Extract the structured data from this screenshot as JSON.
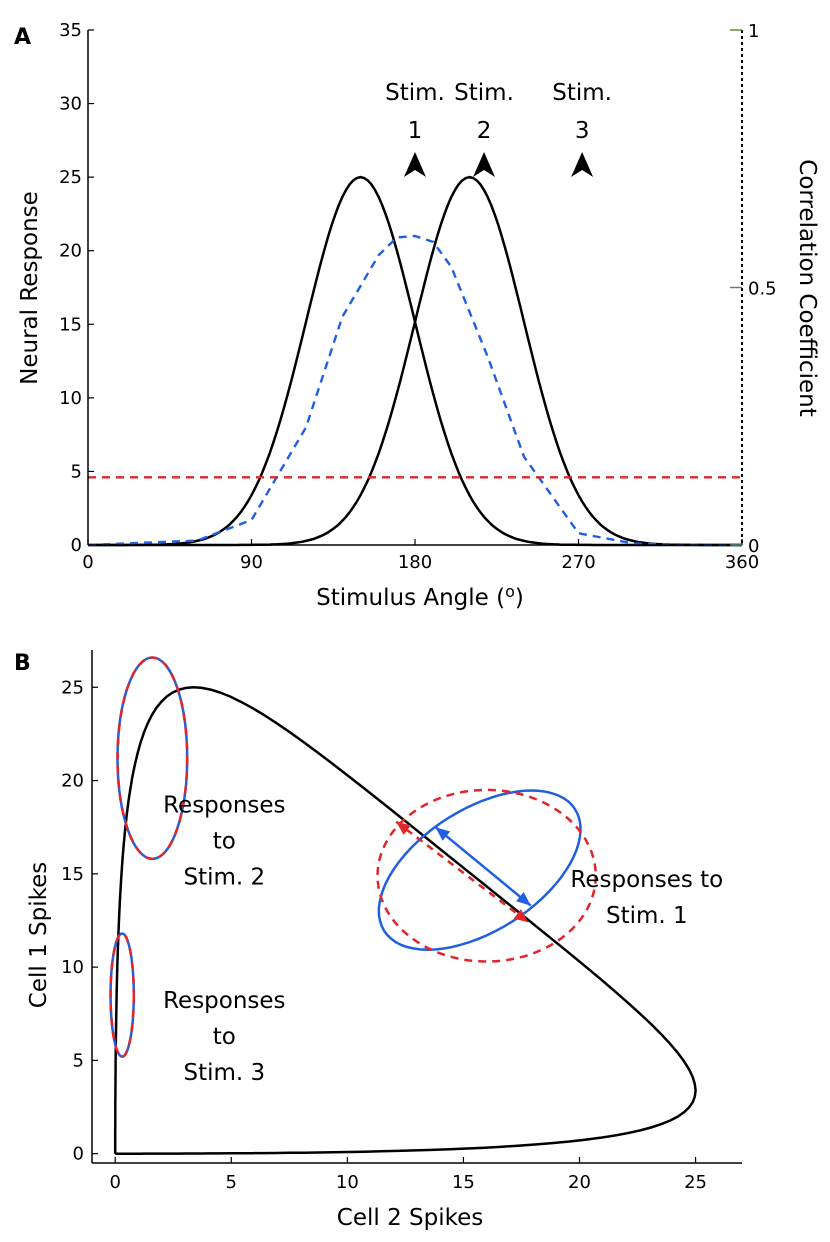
{
  "chart_data": [
    {
      "panel": "A",
      "type": "line",
      "xlabel": "Stimulus Angle (",
      "xlabel_sup": "o",
      "xlabel_end": ")",
      "ylabel": "Neural Response",
      "y2label": "Correlation Coefficient",
      "xlim": [
        0,
        360
      ],
      "ylim": [
        0,
        35
      ],
      "y2lim": [
        0,
        1
      ],
      "xticks": [
        "0",
        "90",
        "180",
        "270",
        "360"
      ],
      "yticks": [
        "0",
        "5",
        "10",
        "15",
        "20",
        "25",
        "30",
        "35"
      ],
      "y2ticks": [
        "0",
        "0.5",
        "1"
      ],
      "tuning_curves": [
        {
          "center": 150,
          "amplitude": 25,
          "sigma": 30,
          "color": "#000000",
          "style": "solid"
        },
        {
          "center": 210,
          "amplitude": 25,
          "sigma": 30,
          "color": "#000000",
          "style": "solid"
        }
      ],
      "series": [
        {
          "x": [
            0,
            60,
            90,
            120,
            140,
            160,
            170,
            180,
            190,
            200,
            220,
            240,
            270,
            300,
            340,
            360
          ],
          "values": [
            0,
            0.3,
            1.7,
            8.0,
            15.5,
            19.7,
            20.9,
            21.0,
            20.6,
            18.9,
            12.8,
            6.0,
            0.8,
            0.1,
            0,
            0
          ],
          "color": "#1f5fe0",
          "style": "dashed"
        },
        {
          "x": [
            0,
            360
          ],
          "values": [
            4.6,
            4.6
          ],
          "color": "#e0262b",
          "style": "dashed"
        }
      ],
      "annotations": [
        {
          "text_line1": "Stim.",
          "text_line2": "1",
          "x": 180
        },
        {
          "text_line1": "Stim.",
          "text_line2": "2",
          "x": 218
        },
        {
          "text_line1": "Stim.",
          "text_line2": "3",
          "x": 272
        }
      ]
    },
    {
      "panel": "B",
      "type": "line",
      "xlabel": "Cell 2 Spikes",
      "ylabel": "Cell 1 Spikes",
      "xlim": [
        -1,
        27
      ],
      "ylim": [
        -0.5,
        27
      ],
      "xticks": [
        "0",
        "5",
        "10",
        "15",
        "20",
        "25"
      ],
      "yticks": [
        "0",
        "5",
        "10",
        "15",
        "20",
        "25"
      ],
      "trajectory": {
        "center_a": 150,
        "center_b": 210,
        "amplitude": 25,
        "sigma": 30,
        "color": "#000000"
      },
      "ellipses": [
        {
          "cx": 1.6,
          "cy": 21.2,
          "rx": 1.5,
          "ry": 5.4,
          "angle": 0,
          "color": "#1f5fe0",
          "style": "solid"
        },
        {
          "cx": 1.6,
          "cy": 21.2,
          "rx": 1.5,
          "ry": 5.4,
          "angle": 0,
          "color": "#e0262b",
          "style": "dashed"
        },
        {
          "cx": 0.3,
          "cy": 8.5,
          "rx": 0.5,
          "ry": 3.3,
          "angle": 0,
          "color": "#1f5fe0",
          "style": "solid"
        },
        {
          "cx": 0.3,
          "cy": 8.5,
          "rx": 0.5,
          "ry": 3.3,
          "angle": 0,
          "color": "#e0262b",
          "style": "dashed"
        },
        {
          "cx": 15.7,
          "cy": 15.2,
          "rx": 5.3,
          "ry": 3.0,
          "angle": 44,
          "color": "#1f5fe0",
          "style": "solid"
        },
        {
          "cx": 16.0,
          "cy": 14.9,
          "rx": 4.7,
          "ry": 4.6,
          "angle": 0,
          "color": "#e0262b",
          "style": "dashed"
        }
      ],
      "arrows": [
        {
          "from": [
            13.8,
            17.5
          ],
          "to": [
            17.9,
            13.3
          ],
          "color": "#1f5fe0",
          "style": "solid"
        },
        {
          "from": [
            12.1,
            17.8
          ],
          "to": [
            17.8,
            12.4
          ],
          "color": "#e0262b",
          "style": "dashed"
        }
      ],
      "annotations": [
        {
          "lines": [
            "Responses",
            "to",
            "Stim. 2"
          ],
          "x": 4.7,
          "y": 18.3
        },
        {
          "lines": [
            "Responses",
            "to",
            "Stim. 3"
          ],
          "x": 4.7,
          "y": 7.8
        },
        {
          "lines": [
            "Responses to",
            "Stim. 1"
          ],
          "x": 22.9,
          "y": 14.3
        }
      ]
    }
  ]
}
